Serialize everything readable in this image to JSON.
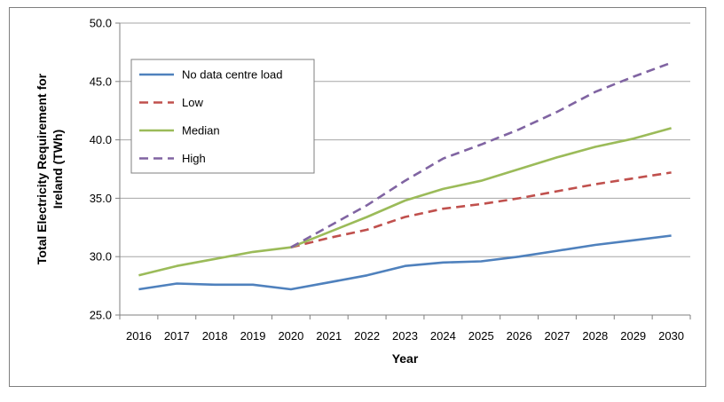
{
  "chart_data": {
    "type": "line",
    "title": "",
    "xlabel": "Year",
    "ylabel_lines": [
      "Total Electricity Requirement for",
      "Ireland (TWh)"
    ],
    "x": [
      "2016",
      "2017",
      "2018",
      "2019",
      "2020",
      "2021",
      "2022",
      "2023",
      "2024",
      "2025",
      "2026",
      "2027",
      "2028",
      "2029",
      "2030"
    ],
    "ylim": [
      25.0,
      50.0
    ],
    "yticks": [
      "25.0",
      "30.0",
      "35.0",
      "40.0",
      "45.0",
      "50.0"
    ],
    "grid": "horizontal",
    "legend_position": "top-left",
    "series": [
      {
        "name": "No data centre load",
        "color": "#4f81bd",
        "dash": "solid",
        "values": [
          27.2,
          27.7,
          27.6,
          27.6,
          27.2,
          27.8,
          28.4,
          29.2,
          29.5,
          29.6,
          30.0,
          30.5,
          31.0,
          31.4,
          31.8
        ]
      },
      {
        "name": "Low",
        "color": "#c0504d",
        "dash": "dashed",
        "values": [
          null,
          null,
          null,
          null,
          30.8,
          31.6,
          32.3,
          33.4,
          34.1,
          34.5,
          35.0,
          35.6,
          36.2,
          36.7,
          37.2
        ]
      },
      {
        "name": "Median",
        "color": "#9bbb59",
        "dash": "solid",
        "values": [
          28.4,
          29.2,
          29.8,
          30.4,
          30.8,
          32.1,
          33.4,
          34.8,
          35.8,
          36.5,
          37.5,
          38.5,
          39.4,
          40.1,
          41.0
        ]
      },
      {
        "name": "High",
        "color": "#8064a2",
        "dash": "dashed",
        "values": [
          null,
          null,
          null,
          null,
          30.8,
          32.6,
          34.4,
          36.5,
          38.4,
          39.6,
          40.9,
          42.4,
          44.1,
          45.4,
          46.6
        ]
      }
    ]
  }
}
